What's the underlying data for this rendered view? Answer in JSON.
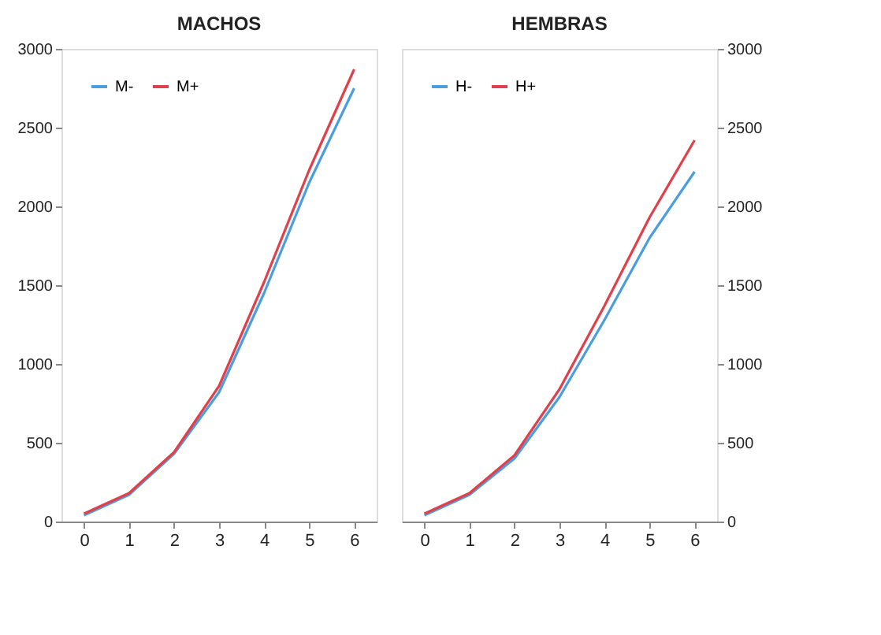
{
  "chart_data": [
    {
      "type": "line",
      "title": "MACHOS",
      "categories": [
        "0",
        "1",
        "2",
        "3",
        "4",
        "5",
        "6"
      ],
      "ylim": [
        0,
        3000
      ],
      "yticks": [
        0,
        500,
        1000,
        1500,
        2000,
        2500,
        3000
      ],
      "grid": false,
      "legend": "top left",
      "marker": "none",
      "line_style": "solid",
      "series": [
        {
          "name": "M-",
          "color": "#4a9ee0",
          "values": [
            40,
            170,
            430,
            820,
            1450,
            2150,
            2750
          ]
        },
        {
          "name": "M+",
          "color": "#e0404a",
          "values": [
            50,
            180,
            440,
            860,
            1520,
            2230,
            2870
          ]
        }
      ]
    },
    {
      "type": "line",
      "title": "HEMBRAS",
      "categories": [
        "0",
        "1",
        "2",
        "3",
        "4",
        "5",
        "6"
      ],
      "ylim": [
        0,
        3000
      ],
      "yticks": [
        0,
        500,
        1000,
        1500,
        2000,
        2500,
        3000
      ],
      "grid": false,
      "legend": "top left",
      "marker": "none",
      "line_style": "solid",
      "series": [
        {
          "name": "H-",
          "color": "#4a9ee0",
          "values": [
            40,
            170,
            400,
            790,
            1280,
            1800,
            2220
          ]
        },
        {
          "name": "H+",
          "color": "#e0404a",
          "values": [
            50,
            180,
            420,
            840,
            1370,
            1930,
            2420
          ]
        }
      ]
    }
  ]
}
